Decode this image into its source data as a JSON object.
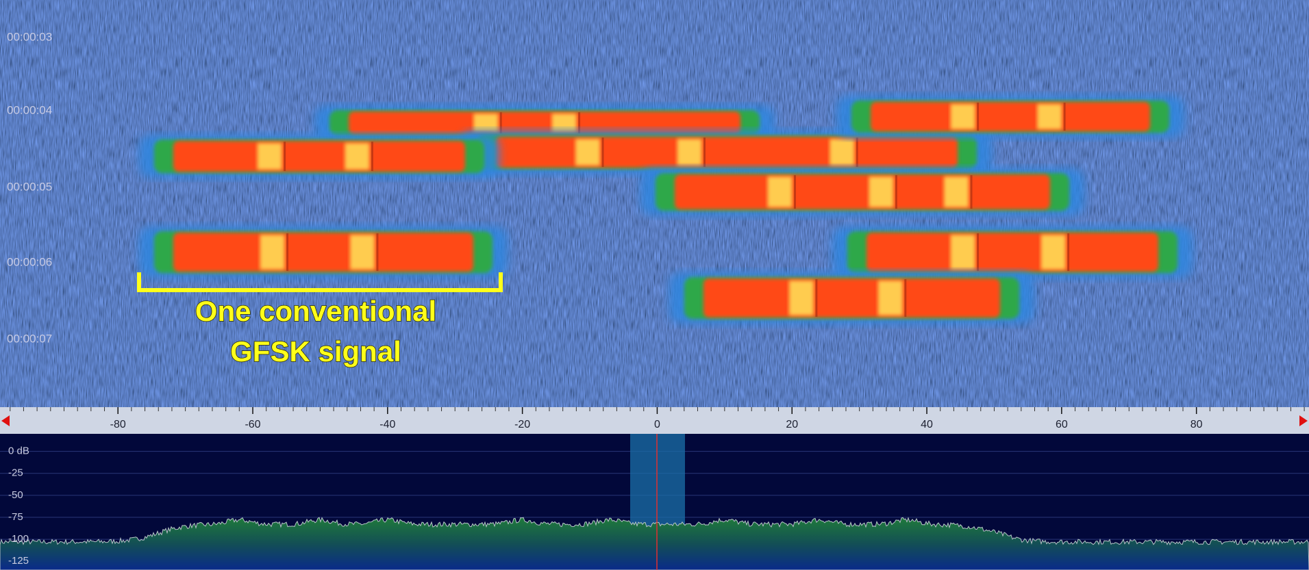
{
  "waterfall": {
    "time_labels": [
      "00:00:03",
      "00:00:04",
      "00:00:05",
      "00:00:06",
      "00:00:07"
    ]
  },
  "frequency_axis": {
    "xlim": [
      -97.5,
      96.7
    ],
    "ticks": [
      -80,
      -60,
      -40,
      -20,
      0,
      20,
      40,
      60,
      80
    ]
  },
  "spectrum": {
    "ylim": [
      -135,
      20
    ],
    "ticks": [
      {
        "value": 0,
        "label": "0 dB"
      },
      -25,
      -50,
      -75,
      -100,
      -125
    ]
  },
  "annotation": {
    "lines": [
      "One conventional",
      "GFSK signal"
    ]
  }
}
